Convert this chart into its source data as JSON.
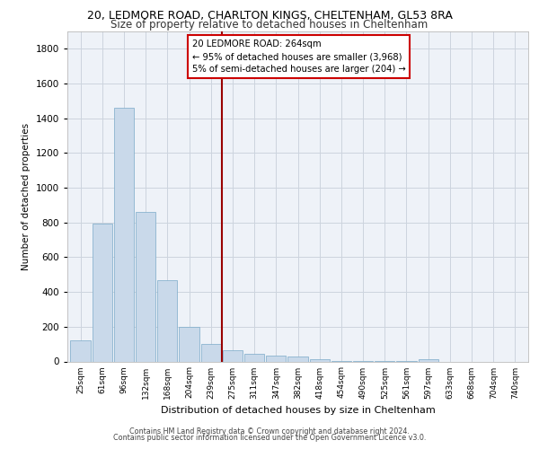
{
  "title_line1": "20, LEDMORE ROAD, CHARLTON KINGS, CHELTENHAM, GL53 8RA",
  "title_line2": "Size of property relative to detached houses in Cheltenham",
  "xlabel": "Distribution of detached houses by size in Cheltenham",
  "ylabel": "Number of detached properties",
  "bar_values": [
    120,
    795,
    1460,
    860,
    470,
    200,
    100,
    65,
    45,
    35,
    28,
    15,
    5,
    5,
    5,
    5,
    15,
    0,
    0,
    0,
    0
  ],
  "bar_labels": [
    "25sqm",
    "61sqm",
    "96sqm",
    "132sqm",
    "168sqm",
    "204sqm",
    "239sqm",
    "275sqm",
    "311sqm",
    "347sqm",
    "382sqm",
    "418sqm",
    "454sqm",
    "490sqm",
    "525sqm",
    "561sqm",
    "597sqm",
    "633sqm",
    "668sqm",
    "704sqm",
    "740sqm"
  ],
  "bar_color": "#c9d9ea",
  "bar_edge_color": "#7aaac8",
  "vline_x": 6.5,
  "vline_color": "#990000",
  "annotation_line1": "20 LEDMORE ROAD: 264sqm",
  "annotation_line2": "← 95% of detached houses are smaller (3,968)",
  "annotation_line3": "5% of semi-detached houses are larger (204) →",
  "annotation_box_color": "#cc0000",
  "ylim": [
    0,
    1900
  ],
  "yticks": [
    0,
    200,
    400,
    600,
    800,
    1000,
    1200,
    1400,
    1600,
    1800
  ],
  "footer_line1": "Contains HM Land Registry data © Crown copyright and database right 2024.",
  "footer_line2": "Contains public sector information licensed under the Open Government Licence v3.0.",
  "plot_bg_color": "#eef2f8",
  "grid_color": "#ccd4de",
  "title1_fontsize": 9.0,
  "title2_fontsize": 8.5,
  "ylabel_fontsize": 7.5,
  "xlabel_fontsize": 8.0,
  "ytick_fontsize": 7.5,
  "xtick_fontsize": 6.5
}
